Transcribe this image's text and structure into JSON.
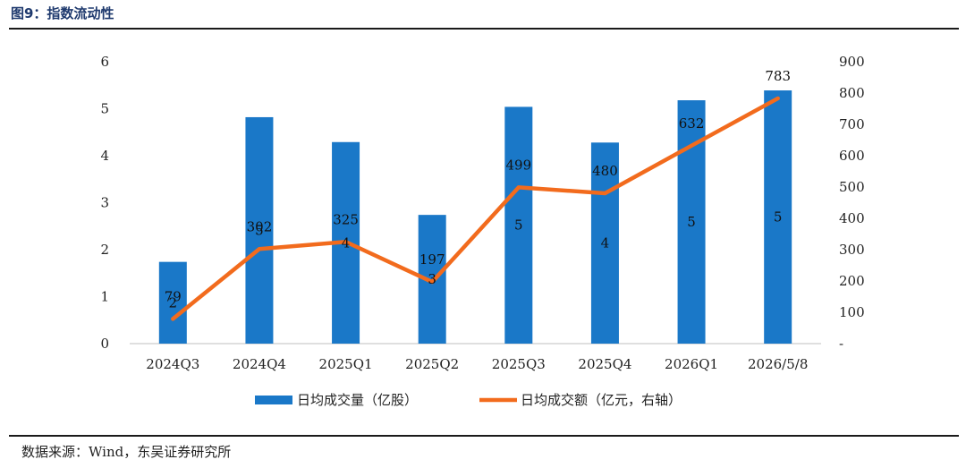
{
  "figure_title": "图9：指数流动性",
  "source": "数据来源：Wind，东吴证券研究所",
  "chart_data": {
    "type": "bar+line",
    "categories": [
      "2024Q3",
      "2024Q4",
      "2025Q1",
      "2025Q2",
      "2025Q3",
      "2025Q4",
      "2026Q1",
      "2026/5/8"
    ],
    "series": [
      {
        "name": "日均成交量（亿股）",
        "type": "bar",
        "axis": "left",
        "color": "#1a78c8",
        "values": [
          1.74,
          4.82,
          4.29,
          2.74,
          5.04,
          4.28,
          5.18,
          5.39
        ],
        "data_labels": [
          "2",
          "5",
          "4",
          "3",
          "5",
          "4",
          "5",
          "5"
        ]
      },
      {
        "name": "日均成交额（亿元，右轴）",
        "type": "line",
        "axis": "right",
        "color": "#f26b1d",
        "values": [
          79,
          302,
          325,
          197,
          499,
          480,
          632,
          783
        ],
        "data_labels": [
          "79",
          "302",
          "325",
          "197",
          "499",
          "480",
          "632",
          "783"
        ]
      }
    ],
    "y_left": {
      "ylim": [
        0,
        6
      ],
      "ticks": [
        "0",
        "1",
        "2",
        "3",
        "4",
        "5",
        "6"
      ]
    },
    "y_right": {
      "ylim": [
        0,
        900
      ],
      "ticks": [
        "-",
        "100",
        "200",
        "300",
        "400",
        "500",
        "600",
        "700",
        "800",
        "900"
      ]
    },
    "grid": false,
    "legend_position": "bottom"
  }
}
